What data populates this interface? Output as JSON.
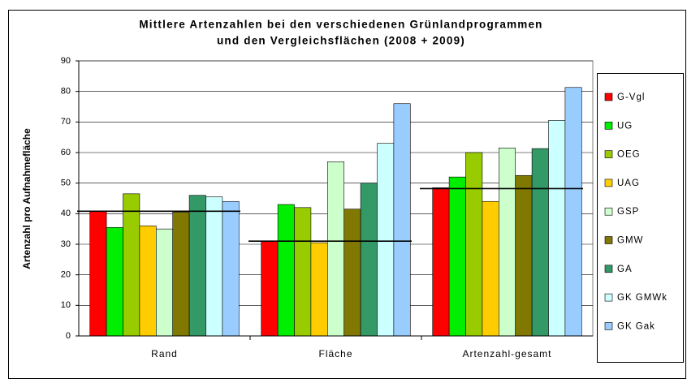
{
  "chart_data": {
    "type": "bar",
    "title": [
      "Mittlere Artenzahlen bei den verschiedenen Grünlandprogrammen",
      "und den Vergleichsflächen (2008 + 2009)"
    ],
    "y_label": "Artenzahl pro Aufnahmefläche",
    "categories": [
      "Rand",
      "Fläche",
      "Artenzahl-gesamt"
    ],
    "series": [
      {
        "name": "G-Vgl",
        "color": "#ff0000",
        "values": [
          40.8,
          31,
          48.5
        ]
      },
      {
        "name": "UG",
        "color": "#00ee00",
        "values": [
          35.5,
          43,
          52
        ]
      },
      {
        "name": "OEG",
        "color": "#99cc00",
        "values": [
          46.5,
          42,
          60
        ]
      },
      {
        "name": "UAG",
        "color": "#ffcc00",
        "values": [
          36,
          30.5,
          44
        ]
      },
      {
        "name": "GSP",
        "color": "#ccffcc",
        "values": [
          35,
          57,
          61.5
        ]
      },
      {
        "name": "GMW",
        "color": "#807800",
        "values": [
          40.5,
          41.5,
          52.5
        ]
      },
      {
        "name": "GA",
        "color": "#339966",
        "values": [
          46,
          50,
          61.3
        ]
      },
      {
        "name": "GK GMWk",
        "color": "#ccffff",
        "values": [
          45.5,
          63,
          70.5
        ]
      },
      {
        "name": "GK Gak",
        "color": "#99ccff",
        "values": [
          44,
          76,
          81.3
        ]
      }
    ],
    "reference_lines": [
      40.8,
      31,
      48.2
    ],
    "ylim": [
      0,
      90
    ],
    "yticks": [
      0,
      10,
      20,
      30,
      40,
      50,
      60,
      70,
      80,
      90
    ],
    "grid": true
  }
}
